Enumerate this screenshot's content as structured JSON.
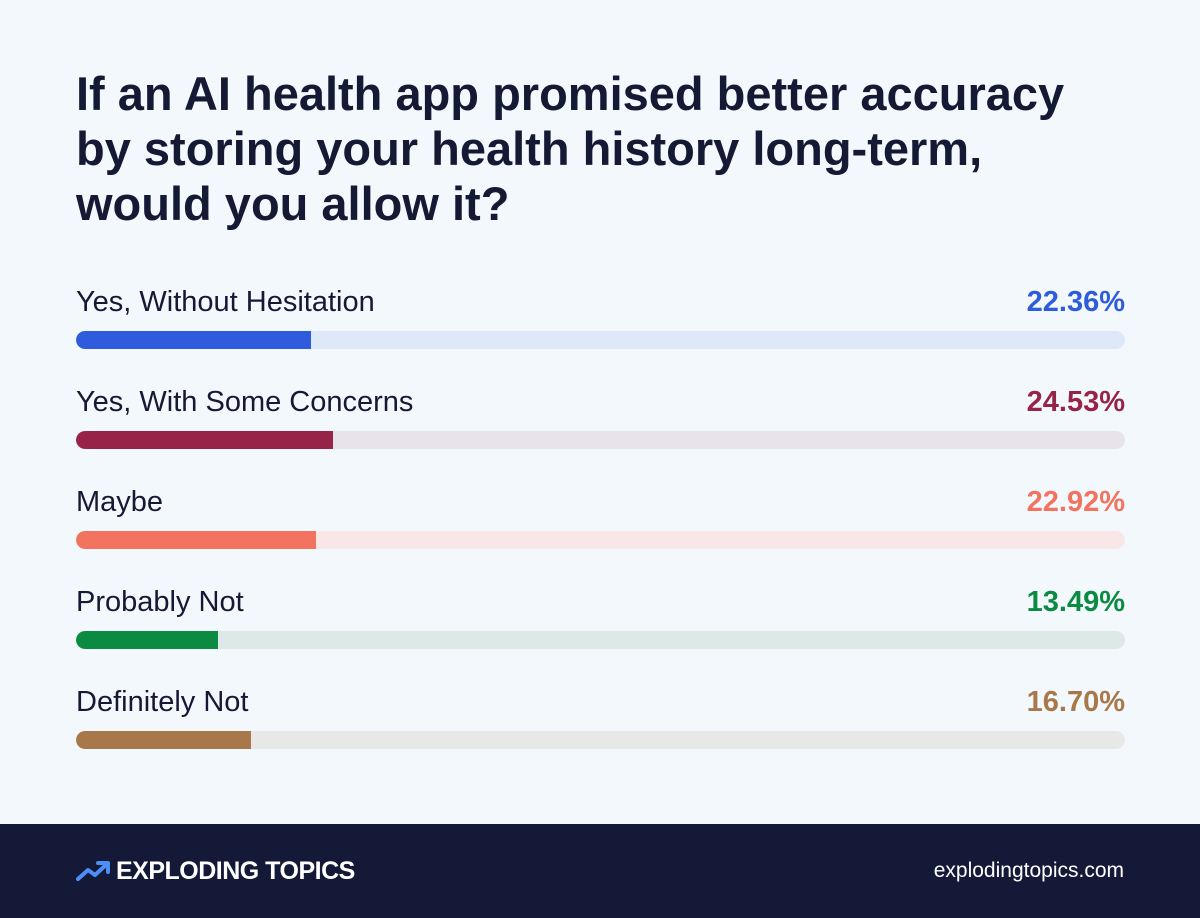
{
  "title": "If an AI health app promised better accuracy by storing your health history long-term, would you allow it?",
  "chart_data": {
    "type": "bar",
    "orientation": "horizontal",
    "title": "If an AI health app promised better accuracy by storing your health history long-term, would you allow it?",
    "categories": [
      "Yes, Without Hesitation",
      "Yes, With Some Concerns",
      "Maybe",
      "Probably Not",
      "Definitely Not"
    ],
    "values": [
      22.36,
      24.53,
      22.92,
      13.49,
      16.7
    ],
    "value_labels": [
      "22.36%",
      "24.53%",
      "22.92%",
      "13.49%",
      "16.70%"
    ],
    "xlim": [
      0,
      100
    ],
    "grid": false,
    "legend": "none",
    "colors": [
      "#2f5cdc",
      "#982349",
      "#f2735f",
      "#0b8a41",
      "#a8784b"
    ],
    "track_colors": [
      "#dde8f8",
      "#e8e3ea",
      "#f8e7e6",
      "#dde9e7",
      "#e8e8e7"
    ]
  },
  "footer": {
    "brand": "EXPLODING TOPICS",
    "brand_icon": "trend-arrow-icon",
    "site": "explodingtopics.com",
    "background": "#131937"
  }
}
